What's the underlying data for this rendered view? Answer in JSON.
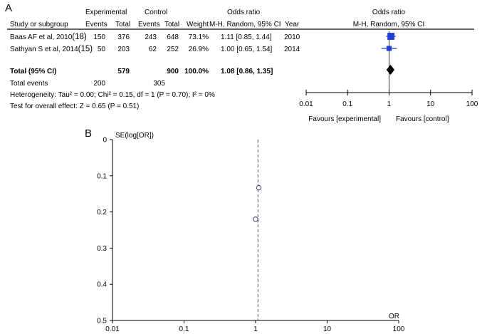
{
  "chart_data": [
    {
      "type": "forest",
      "panel_label": "A",
      "columns": {
        "group_experimental": "Experimental",
        "group_control": "Control",
        "group_or": "Odds ratio",
        "study": "Study or subgroup",
        "events": "Events",
        "total": "Total",
        "weight": "Weight",
        "method": "M-H, Random, 95% CI",
        "year": "Year"
      },
      "plot_header": {
        "title": "Odds ratio",
        "method": "M-H, Random, 95% CI"
      },
      "studies": [
        {
          "name": "Baas AF et al, 2010",
          "ref": "(18)",
          "exp_events": "150",
          "exp_total": "376",
          "ctl_events": "243",
          "ctl_total": "648",
          "weight": "73.1%",
          "ci_text": "1.11 [0.85, 1.44]",
          "year": "2010",
          "or": 1.11,
          "lo": 0.85,
          "hi": 1.44,
          "weight_pct": 73.1
        },
        {
          "name": "Sathyan S et al, 2014",
          "ref": "(15)",
          "exp_events": "50",
          "exp_total": "203",
          "ctl_events": "62",
          "ctl_total": "252",
          "weight": "26.9%",
          "ci_text": "1.00 [0.65, 1.54]",
          "year": "2014",
          "or": 1.0,
          "lo": 0.65,
          "hi": 1.54,
          "weight_pct": 26.9
        }
      ],
      "total": {
        "label": "Total (95% CI)",
        "exp_total": "579",
        "ctl_total": "900",
        "weight": "100.0%",
        "ci_text": "1.08 [0.86, 1.35]",
        "or": 1.08,
        "lo": 0.86,
        "hi": 1.35
      },
      "total_events": {
        "label": "Total events",
        "exp_events": "200",
        "ctl_events": "305"
      },
      "heterogeneity": "Heterogeneity: Tau² = 0.00; Chi² = 0.15, df = 1 (P = 0.70); I² = 0%",
      "overall_effect": "Test for overall effect: Z = 0.65 (P = 0.51)",
      "axis": {
        "scale": "log",
        "ticks": [
          0.01,
          0.1,
          1,
          10,
          100
        ],
        "tick_labels": [
          "0.01",
          "0.1",
          "1",
          "10",
          "100"
        ]
      },
      "favours_left": "Favours [experimental]",
      "favours_right": "Favours [control]",
      "colors": {
        "study_marker": "#1f3fd8",
        "summary": "#000000"
      }
    },
    {
      "type": "scatter",
      "panel_label": "B",
      "ylabel": "SE(log[OR])",
      "xlabel": "OR",
      "x_scale": "log",
      "xlim": [
        0.01,
        100
      ],
      "ylim": [
        0,
        0.5
      ],
      "y_inverted": true,
      "x_ticks": [
        0.01,
        0.1,
        1,
        10,
        100
      ],
      "x_tick_labels": [
        "0.01",
        "0.1",
        "1",
        "10",
        "100"
      ],
      "y_ticks": [
        0,
        0.1,
        0.2,
        0.3,
        0.4,
        0.5
      ],
      "y_tick_labels": [
        "0",
        "0.1",
        "0.2",
        "0.3",
        "0.4",
        "0.5"
      ],
      "points": [
        {
          "x": 1.11,
          "y": 0.133
        },
        {
          "x": 1.0,
          "y": 0.22
        }
      ],
      "pooled_or": 1.08,
      "colors": {
        "point": "#3a3f6a",
        "reference_line": "#555555"
      }
    }
  ]
}
